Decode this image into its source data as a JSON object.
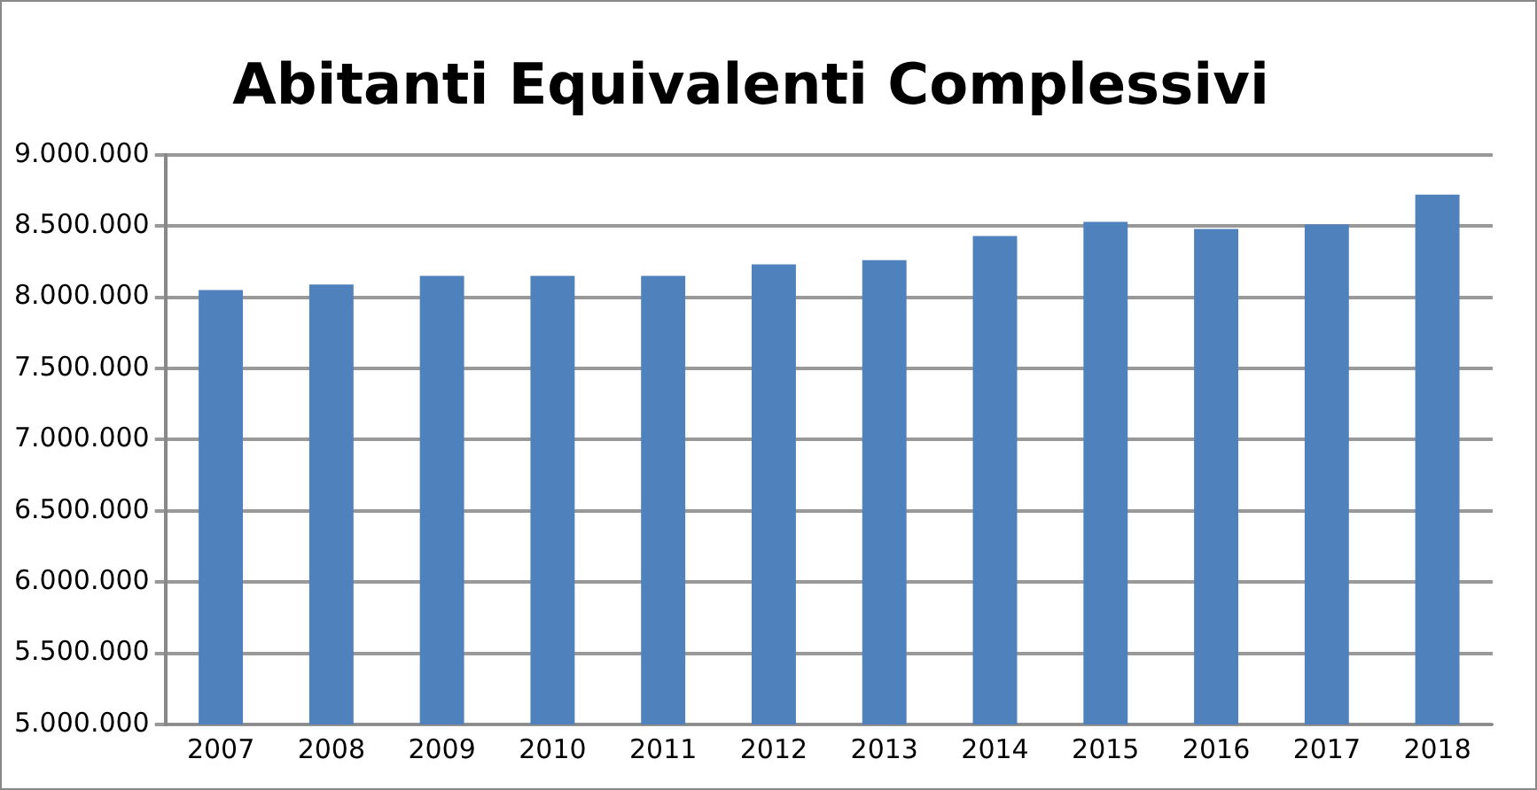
{
  "chart_data": {
    "type": "bar",
    "title": "Abitanti Equivalenti Complessivi",
    "categories": [
      "2007",
      "2008",
      "2009",
      "2010",
      "2011",
      "2012",
      "2013",
      "2014",
      "2015",
      "2016",
      "2017",
      "2018"
    ],
    "values": [
      8050000,
      8090000,
      8150000,
      8150000,
      8150000,
      8230000,
      8260000,
      8430000,
      8530000,
      8480000,
      8510000,
      8720000
    ],
    "color": "#4f81bd",
    "ylim": [
      5000000,
      9000000
    ],
    "yticks": [
      {
        "value": 5000000,
        "label": "5.000.000"
      },
      {
        "value": 5500000,
        "label": "5.500.000"
      },
      {
        "value": 6000000,
        "label": "6.000.000"
      },
      {
        "value": 6500000,
        "label": "6.500.000"
      },
      {
        "value": 7000000,
        "label": "7.000.000"
      },
      {
        "value": 7500000,
        "label": "7.500.000"
      },
      {
        "value": 8000000,
        "label": "8.000.000"
      },
      {
        "value": 8500000,
        "label": "8.500.000"
      },
      {
        "value": 9000000,
        "label": "9.000.000"
      }
    ],
    "grid": "y",
    "legend": false
  }
}
